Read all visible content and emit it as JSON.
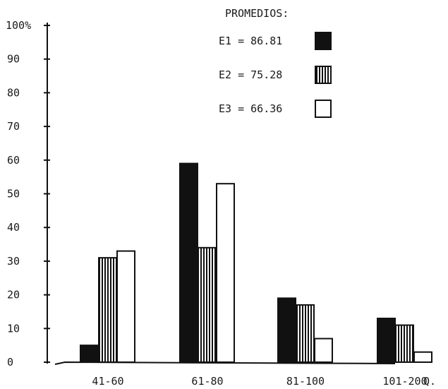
{
  "chart_data": {
    "type": "bar",
    "title": "",
    "xlabel": "Q.",
    "ylabel": "",
    "ylim": [
      0,
      100
    ],
    "yticks": [
      0,
      10,
      20,
      30,
      40,
      50,
      60,
      70,
      80,
      90,
      100
    ],
    "ytick_labels": [
      "0",
      "10",
      "20",
      "30",
      "40",
      "50",
      "60",
      "70",
      "80",
      "90",
      "100%"
    ],
    "categories": [
      "41-60",
      "61-80",
      "81-100",
      "101-200"
    ],
    "series": [
      {
        "name": "E1",
        "values": [
          5,
          59,
          19,
          13
        ],
        "color": "#111111",
        "pattern": "solid"
      },
      {
        "name": "E2",
        "values": [
          31,
          34,
          17,
          11
        ],
        "color": "#111111",
        "pattern": "vertical-hatch"
      },
      {
        "name": "E3",
        "values": [
          33,
          53,
          7,
          3
        ],
        "color": "#ffffff",
        "pattern": "empty"
      }
    ],
    "legend": {
      "position": "top-right",
      "title": "PROMEDIOS:",
      "entries": [
        {
          "series": "E1",
          "label": "E1 = 86.81"
        },
        {
          "series": "E2",
          "label": "E2 = 75.28"
        },
        {
          "series": "E3",
          "label": "E3 = 66.36"
        }
      ]
    },
    "grid": false
  }
}
